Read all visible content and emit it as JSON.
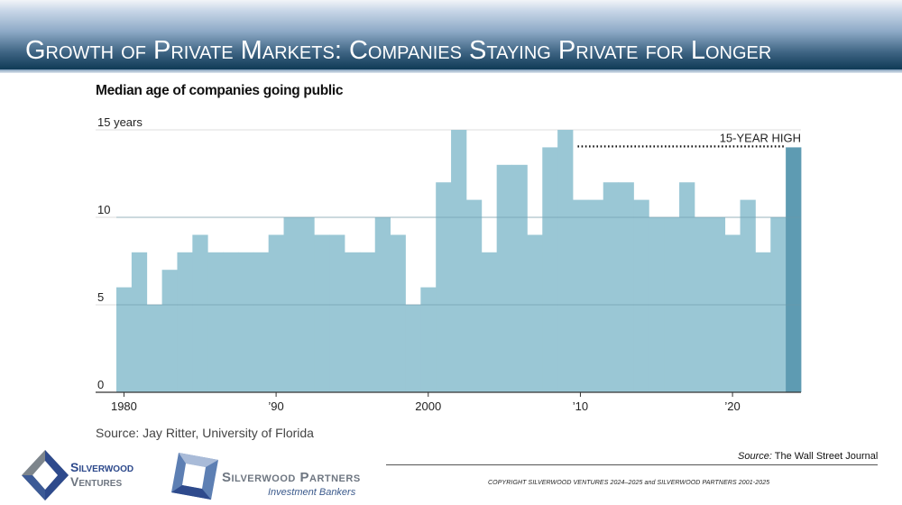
{
  "header": {
    "title": "Growth of Private Markets: Companies Staying Private for Longer"
  },
  "chart_data": {
    "type": "bar",
    "title": "Median age of companies going public",
    "xlabel": "",
    "ylabel": "",
    "ylim": [
      0,
      15
    ],
    "yticks": [
      {
        "value": 0,
        "label": "0"
      },
      {
        "value": 5,
        "label": "5"
      },
      {
        "value": 10,
        "label": "10"
      },
      {
        "value": 15,
        "label": "15 years"
      }
    ],
    "xticks": [
      {
        "value": 1980,
        "label": "1980"
      },
      {
        "value": 1990,
        "label": "’90"
      },
      {
        "value": 2000,
        "label": "2000"
      },
      {
        "value": 2010,
        "label": "’10"
      },
      {
        "value": 2020,
        "label": "’20"
      }
    ],
    "grid": true,
    "categories": [
      1980,
      1981,
      1982,
      1983,
      1984,
      1985,
      1986,
      1987,
      1988,
      1989,
      1990,
      1991,
      1992,
      1993,
      1994,
      1995,
      1996,
      1997,
      1998,
      1999,
      2000,
      2001,
      2002,
      2003,
      2004,
      2005,
      2006,
      2007,
      2008,
      2009,
      2010,
      2011,
      2012,
      2013,
      2014,
      2015,
      2016,
      2017,
      2018,
      2019,
      2020,
      2021,
      2022,
      2023,
      2024
    ],
    "values": [
      6,
      8,
      5,
      7,
      8,
      9,
      8,
      8,
      8,
      8,
      9,
      10,
      10,
      9,
      9,
      8,
      8,
      10,
      9,
      5,
      6,
      12,
      15,
      11,
      8,
      13,
      13,
      9,
      14,
      15,
      11,
      11,
      12,
      12,
      11,
      10,
      10,
      12,
      10,
      10,
      9,
      11,
      8,
      10,
      14
    ],
    "highlight": {
      "year": 2024,
      "color": "#5e9bb2"
    },
    "bar_color": "#9ac7d5",
    "annotation": {
      "label": "15-YEAR HIGH",
      "value": 14,
      "from": 2010,
      "to": 2024
    }
  },
  "footer": {
    "source_chart": "Source: Jay Ritter, University of Florida",
    "source_label": "Source:",
    "source_value": "The Wall Street Journal",
    "copyright": "COPYRIGHT SILVERWOOD VENTURES 2024–2025 and SILVERWOOD PARTNERS 2001-2025",
    "logo_ventures": [
      "Silverwood",
      "Ventures"
    ],
    "logo_partners": "Silverwood Partners",
    "logo_partners_sub": "Investment Bankers"
  }
}
